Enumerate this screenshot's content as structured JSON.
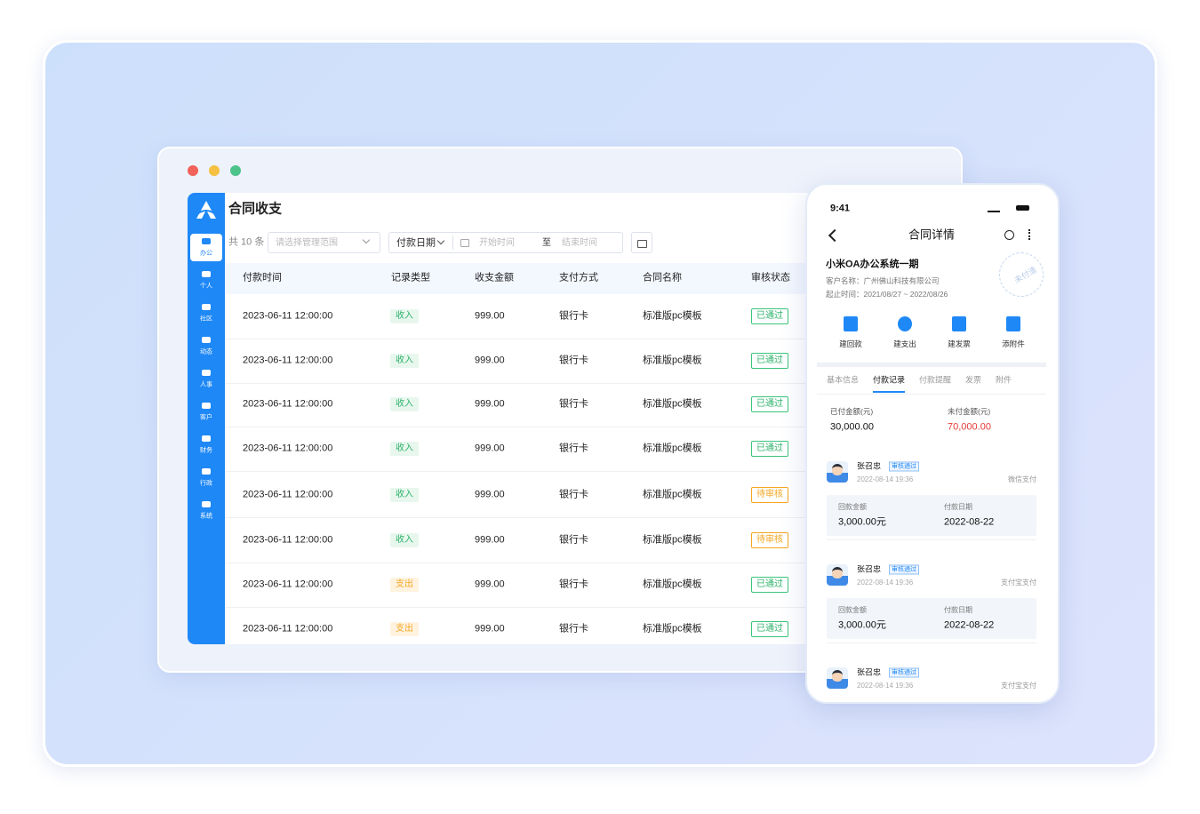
{
  "desktop": {
    "title": "合同收支",
    "count": "共 10 条",
    "filters": {
      "scope": "请选择管理范围",
      "date_type": "付款日期",
      "start": "开始时间",
      "separator": "至",
      "end": "结束时间"
    },
    "sidebar": [
      "办公",
      "个人",
      "社区",
      "动态",
      "人事",
      "客户",
      "财务",
      "行政",
      "系统"
    ],
    "table": {
      "headers": [
        "付款时间",
        "记录类型",
        "收支金额",
        "支付方式",
        "合同名称",
        "审核状态"
      ],
      "rows": [
        [
          "2023-06-11 12:00:00",
          "收入",
          "999.00",
          "银行卡",
          "标准版pc模板",
          "已通过"
        ],
        [
          "2023-06-11 12:00:00",
          "收入",
          "999.00",
          "银行卡",
          "标准版pc模板",
          "已通过"
        ],
        [
          "2023-06-11 12:00:00",
          "收入",
          "999.00",
          "银行卡",
          "标准版pc模板",
          "已通过"
        ],
        [
          "2023-06-11 12:00:00",
          "收入",
          "999.00",
          "银行卡",
          "标准版pc模板",
          "已通过"
        ],
        [
          "2023-06-11 12:00:00",
          "收入",
          "999.00",
          "银行卡",
          "标准版pc模板",
          "待审核"
        ],
        [
          "2023-06-11 12:00:00",
          "收入",
          "999.00",
          "银行卡",
          "标准版pc模板",
          "待审核"
        ],
        [
          "2023-06-11 12:00:00",
          "支出",
          "999.00",
          "银行卡",
          "标准版pc模板",
          "已通过"
        ],
        [
          "2023-06-11 12:00:00",
          "支出",
          "999.00",
          "银行卡",
          "标准版pc模板",
          "已通过"
        ]
      ]
    }
  },
  "mobile": {
    "time": "9:41",
    "title": "合同详情",
    "project": "小米OA办公系统一期",
    "client": "客户名称：广州佛山科技有限公司",
    "period": "起止时间：2021/08/27 ~ 2022/08/26",
    "stamp": "未付清",
    "actions": [
      "建回款",
      "建支出",
      "建发票",
      "添附件"
    ],
    "tabs": [
      "基本信息",
      "付款记录",
      "付款提醒",
      "发票",
      "附件"
    ],
    "summary": {
      "paid_label": "已付金额(元)",
      "paid": "30,000.00",
      "unpaid_label": "未付金额(元)",
      "unpaid": "70,000.00"
    },
    "records": [
      {
        "name": "张召忠",
        "badge": "审核通过",
        "time": "2022-08-14 19:36",
        "method": "微信支付",
        "amount_label": "回款金额",
        "amount": "3,000.00元",
        "date_label": "付款日期",
        "date": "2022-08-22"
      },
      {
        "name": "张召忠",
        "badge": "审核通过",
        "time": "2022-08-14 19:36",
        "method": "支付宝支付",
        "amount_label": "回款金额",
        "amount": "3,000.00元",
        "date_label": "付款日期",
        "date": "2022-08-22"
      },
      {
        "name": "张召忠",
        "badge": "审核通过",
        "time": "2022-08-14 19:36",
        "method": "支付宝支付"
      }
    ]
  }
}
